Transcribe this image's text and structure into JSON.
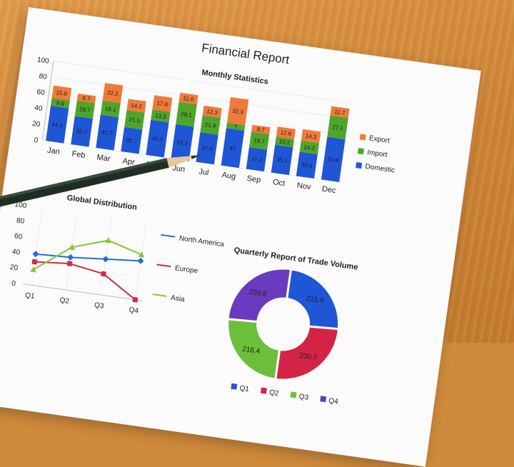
{
  "report_title": "Financial Report",
  "chart_data": [
    {
      "type": "bar",
      "stacked": true,
      "title": "Monthly Statistics",
      "categories": [
        "Jan",
        "Feb",
        "Mar",
        "Apr",
        "May",
        "Jun",
        "Jul",
        "Aug",
        "Sep",
        "Oct",
        "Nov",
        "Dec"
      ],
      "series": [
        {
          "name": "Domestic",
          "color": "#1e56d6",
          "values": [
            44.3,
            35.7,
            41.7,
            30.7,
            44.2,
            43.2,
            37.4,
            47.0,
            27.4,
            35.1,
            30.6,
            53.9
          ]
        },
        {
          "name": "Import",
          "color": "#4ea52a",
          "values": [
            9.9,
            19.7,
            18.1,
            21.5,
            13.3,
            28.1,
            21.4,
            7.0,
            19.7,
            10.2,
            14.2,
            27.1
          ]
        },
        {
          "name": "Export",
          "color": "#f07a3a",
          "values": [
            15.6,
            8.7,
            22.2,
            14.2,
            17.8,
            11.6,
            12.3,
            32.3,
            8.7,
            12.6,
            14.3,
            11.7
          ]
        }
      ],
      "y_ticks": [
        0,
        20,
        40,
        60,
        80,
        100
      ],
      "ylim": [
        0,
        100
      ],
      "legend_position": "right"
    },
    {
      "type": "line",
      "title": "Global Distribution",
      "categories": [
        "Q1",
        "Q2",
        "Q3",
        "Q4"
      ],
      "series": [
        {
          "name": "North America",
          "color": "#1e70d8",
          "marker": "diamond",
          "values": [
            40,
            42,
            46,
            50
          ]
        },
        {
          "name": "Europe",
          "color": "#d22a4a",
          "marker": "square",
          "values": [
            30,
            34,
            27,
            0
          ]
        },
        {
          "name": "Asia",
          "color": "#8ac43a",
          "marker": "triangle",
          "values": [
            20,
            55,
            70,
            58
          ]
        }
      ],
      "y_ticks": [
        0,
        20,
        40,
        60,
        80,
        100
      ],
      "ylim": [
        0,
        100
      ],
      "legend_position": "right"
    },
    {
      "type": "pie",
      "donut": true,
      "title": "Quarterly Report of Trade Volume",
      "categories": [
        "Q1",
        "Q2",
        "Q3",
        "Q4"
      ],
      "values": [
        215.6,
        230.7,
        216.4,
        229.8
      ],
      "colors": [
        "#1e56d6",
        "#d42446",
        "#6cbf3a",
        "#6a3bbf"
      ],
      "legend_position": "bottom"
    }
  ]
}
